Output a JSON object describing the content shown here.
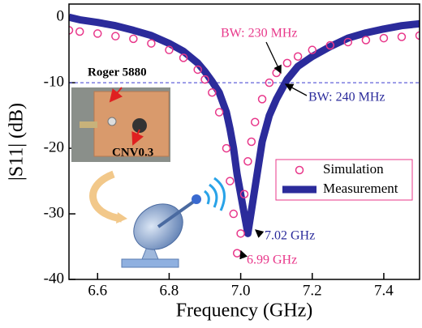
{
  "chart_data": {
    "type": "line",
    "xlabel": "Frequency (GHz)",
    "ylabel": "|S11| (dB)",
    "xlim": [
      6.52,
      7.5
    ],
    "ylim": [
      -40,
      2
    ],
    "xticks": [
      6.6,
      6.8,
      {
        "value": 7,
        "label": "7.0"
      },
      7.2,
      7.4
    ],
    "yticks": [
      -40,
      -30,
      -20,
      -10,
      0
    ],
    "reference_line": -10,
    "legend": "right",
    "x": [
      6.52,
      6.55,
      6.6,
      6.65,
      6.7,
      6.75,
      6.8,
      6.84,
      6.88,
      6.9,
      6.92,
      6.94,
      6.96,
      6.97,
      6.98,
      6.99,
      7.0,
      7.01,
      7.02,
      7.03,
      7.04,
      7.06,
      7.08,
      7.1,
      7.13,
      7.16,
      7.2,
      7.25,
      7.3,
      7.35,
      7.4,
      7.45,
      7.5
    ],
    "series": [
      {
        "name": "Simulation",
        "color": "#e8378a",
        "marker": "circle",
        "values": [
          -2.0,
          -2.2,
          -2.5,
          -2.9,
          -3.3,
          -4.0,
          -5.0,
          -6.2,
          -8.0,
          -9.5,
          -11.5,
          -14.5,
          -20,
          -25,
          -30,
          -36,
          -33,
          -27,
          -22,
          -19,
          -16,
          -12.5,
          -10,
          -8.5,
          -7,
          -6,
          -5,
          -4.3,
          -3.8,
          -3.5,
          -3.2,
          -3.0,
          -2.8
        ]
      },
      {
        "name": "Measurement",
        "color": "#2b2b9b",
        "marker": "line",
        "values": [
          0,
          -0.4,
          -0.8,
          -1.3,
          -2.0,
          -2.8,
          -4.0,
          -5.2,
          -7.0,
          -8.3,
          -9.8,
          -11.5,
          -14.5,
          -17,
          -20,
          -24,
          -27,
          -30,
          -33,
          -29.5,
          -26,
          -19,
          -15,
          -12.5,
          -9.5,
          -7.5,
          -6,
          -4.5,
          -3.2,
          -2.4,
          -1.8,
          -1.3,
          -1.0
        ]
      }
    ],
    "annotations": [
      "BW: 230 MHz",
      "BW: 240 MHz",
      "7.02 GHz",
      "6.99 GHz"
    ],
    "inset_labels": [
      "Roger 5880",
      "CNV0.3"
    ]
  }
}
